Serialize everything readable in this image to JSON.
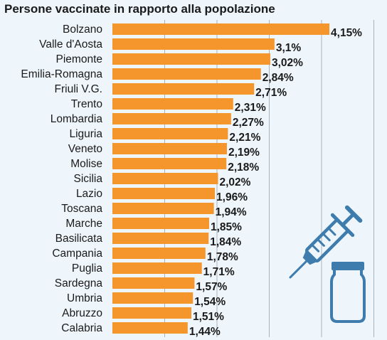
{
  "chart_data": {
    "type": "bar",
    "orientation": "horizontal",
    "title": "Persone vaccinate in rapporto alla popolazione",
    "categories": [
      "Bolzano",
      "Valle d'Aosta",
      "Piemonte",
      "Emilia-Romagna",
      "Friuli V.G.",
      "Trento",
      "Lombardia",
      "Liguria",
      "Veneto",
      "Molise",
      "Sicilia",
      "Lazio",
      "Toscana",
      "Marche",
      "Basilicata",
      "Campania",
      "Puglia",
      "Sardegna",
      "Umbria",
      "Abruzzo",
      "Calabria"
    ],
    "values": [
      4.15,
      3.1,
      3.02,
      2.84,
      2.71,
      2.31,
      2.27,
      2.21,
      2.19,
      2.18,
      2.02,
      1.96,
      1.94,
      1.85,
      1.84,
      1.78,
      1.71,
      1.57,
      1.54,
      1.51,
      1.44
    ],
    "value_labels": [
      "4,15%",
      "3,1%",
      "3,02%",
      "2,84%",
      "2,71%",
      "2,31%",
      "2,27%",
      "2,21%",
      "2,19%",
      "2,18%",
      "2,02%",
      "1,96%",
      "1,94%",
      "1,85%",
      "1,84%",
      "1,78%",
      "1,71%",
      "1,57%",
      "1,54%",
      "1,51%",
      "1,44%"
    ],
    "xlim": [
      0,
      5
    ],
    "grid": true,
    "legend": "none",
    "bar_color": "#f5962d",
    "icon": "syringe-and-vial-icon",
    "icon_color": "#3d7cad"
  }
}
